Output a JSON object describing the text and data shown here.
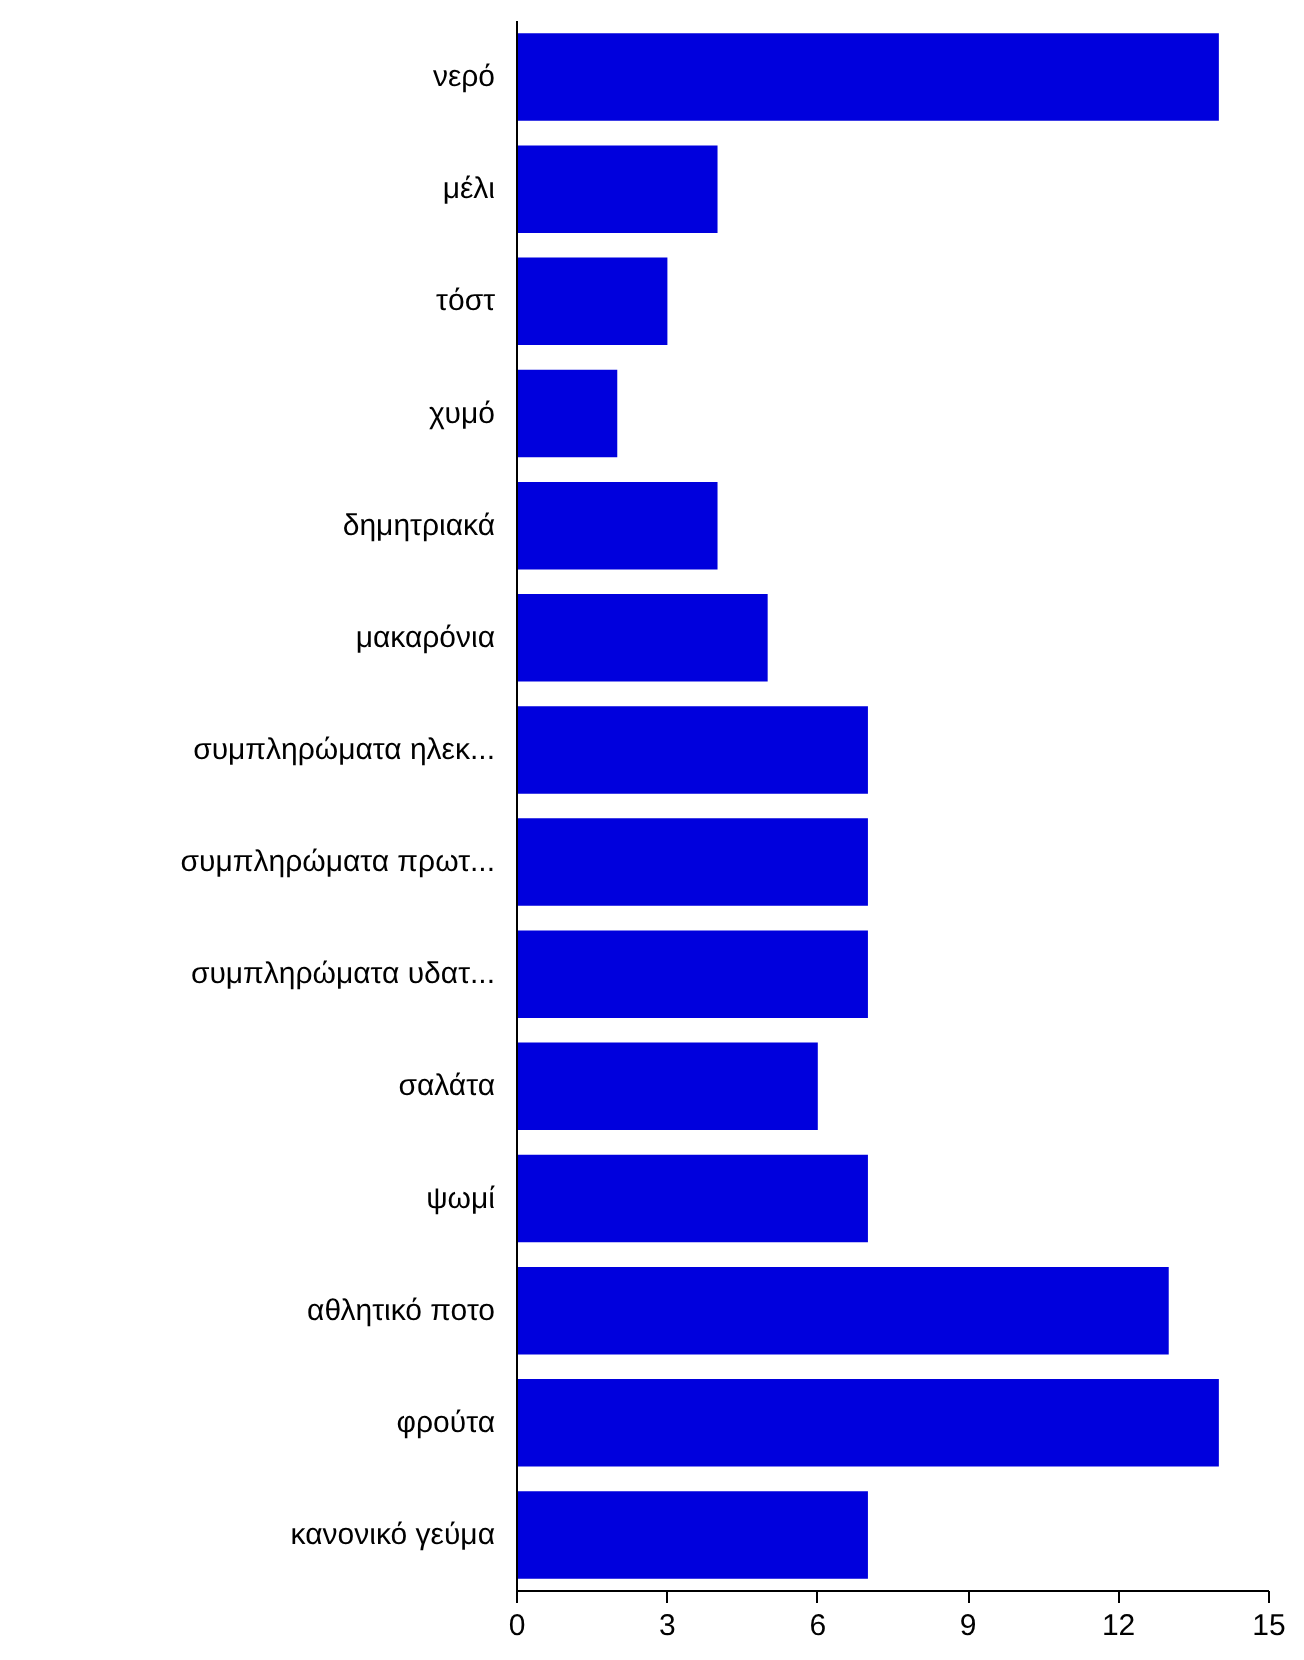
{
  "chart_data": {
    "type": "bar",
    "orientation": "horizontal",
    "categories": [
      "νερό",
      "μέλι",
      "τόστ",
      "χυμό",
      "δημητριακά",
      "μακαρόνια",
      "συμπληρώματα ηλεκ...",
      "συμπληρώματα πρωτ...",
      "συμπληρώματα υδατ...",
      "σαλάτα",
      "ψωμί",
      "αθλητικό ποτο",
      "φρούτα",
      "κανονικό γεύμα"
    ],
    "values": [
      14,
      4,
      3,
      2,
      4,
      5,
      7,
      7,
      7,
      6,
      7,
      13,
      14,
      7
    ],
    "color": "#0000dd",
    "xlim": [
      0,
      15
    ],
    "xticks": [
      0,
      3,
      6,
      9,
      12,
      15
    ],
    "grid": false
  }
}
